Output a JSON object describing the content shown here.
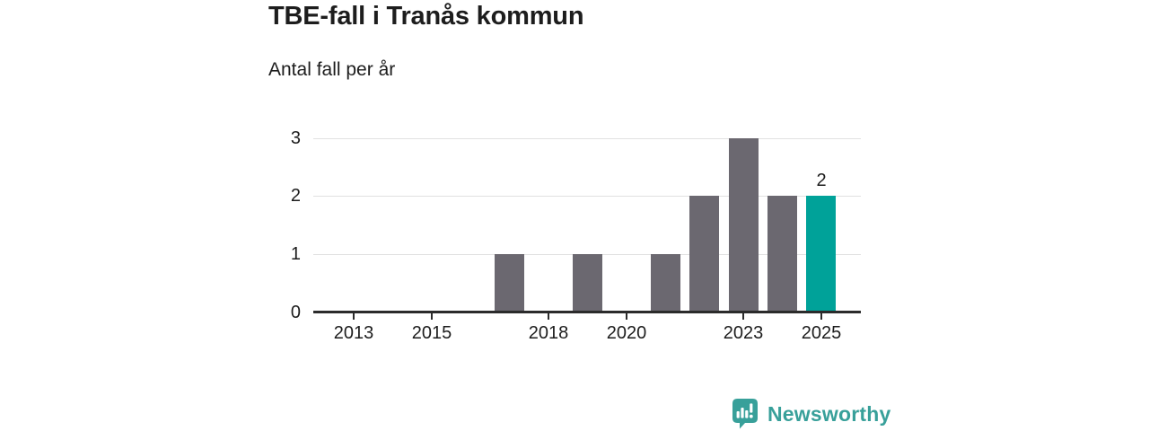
{
  "chart_data": {
    "type": "bar",
    "title": "TBE-fall i Tranås kommun",
    "subtitle": "Antal fall per år",
    "categories": [
      2012,
      2013,
      2014,
      2015,
      2016,
      2017,
      2018,
      2019,
      2020,
      2021,
      2022,
      2023,
      2024,
      2025
    ],
    "values": [
      0,
      0,
      0,
      0,
      0,
      1,
      0,
      1,
      0,
      1,
      2,
      3,
      2,
      2
    ],
    "ylim": [
      0,
      3
    ],
    "yticks": [
      0,
      1,
      2,
      3
    ],
    "xtick_labels": [
      2013,
      2015,
      2018,
      2020,
      2023,
      2025
    ],
    "highlight": {
      "year": 2025,
      "label": "2"
    },
    "grid": "horizontal-only",
    "legend": "none",
    "colors": {
      "bar": "#6b6870",
      "highlight_bar": "#00a299",
      "gridline": "#e1e1e1",
      "axis": "#2b2b2b",
      "text": "#1d1d1d"
    }
  },
  "branding": {
    "logo_text": "Newsworthy",
    "logo_icon": "bar-chart-speech-bubble",
    "logo_color": "#38a09a"
  }
}
